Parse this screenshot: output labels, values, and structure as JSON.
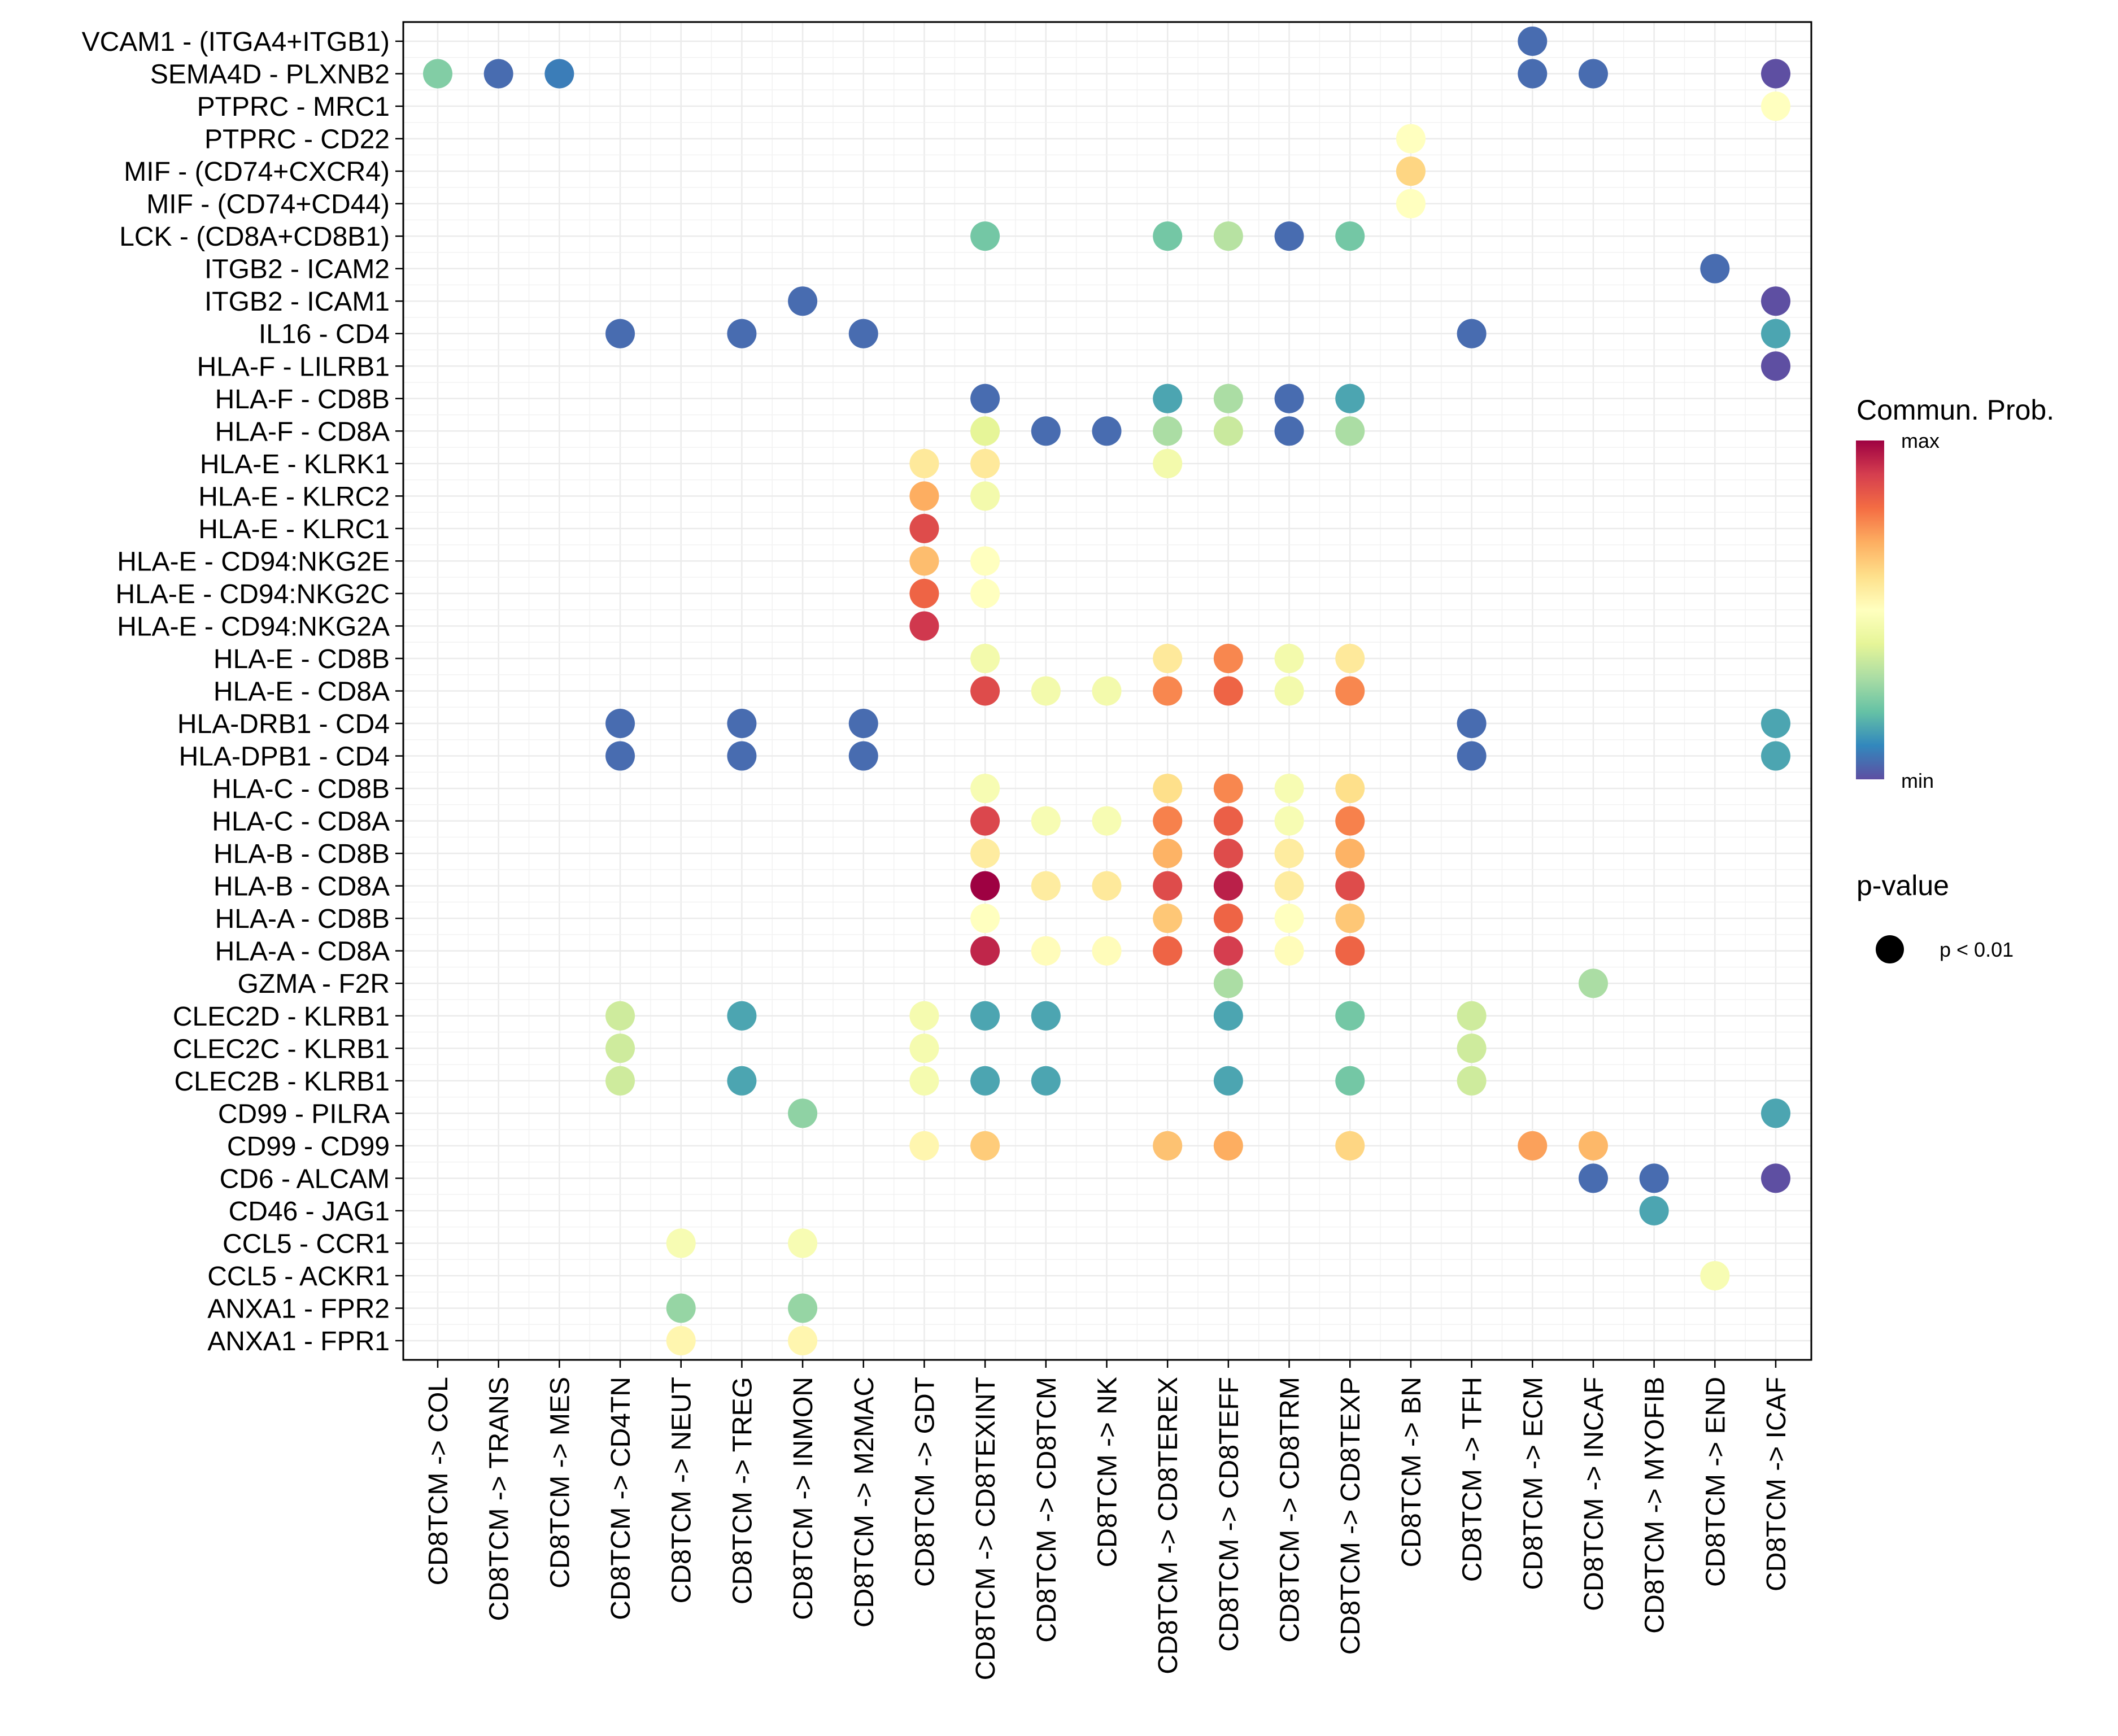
{
  "chart_data": {
    "type": "scatter",
    "subtype": "dot-plot",
    "title": "",
    "xlabel": "",
    "ylabel": "",
    "grid": true,
    "legend_position": "right",
    "x_categories": [
      "CD8TCM -> COL",
      "CD8TCM -> TRANS",
      "CD8TCM -> MES",
      "CD8TCM -> CD4TN",
      "CD8TCM -> NEUT",
      "CD8TCM -> TREG",
      "CD8TCM -> INMON",
      "CD8TCM -> M2MAC",
      "CD8TCM -> GDT",
      "CD8TCM -> CD8TEXINT",
      "CD8TCM -> CD8TCM",
      "CD8TCM -> NK",
      "CD8TCM -> CD8TEREX",
      "CD8TCM -> CD8TEFF",
      "CD8TCM -> CD8TRM",
      "CD8TCM -> CD8TEXP",
      "CD8TCM -> BN",
      "CD8TCM -> TFH",
      "CD8TCM -> ECM",
      "CD8TCM -> INCAF",
      "CD8TCM -> MYOFIB",
      "CD8TCM -> END",
      "CD8TCM -> ICAF"
    ],
    "y_categories": [
      "VCAM1 - (ITGA4+ITGB1)",
      "SEMA4D - PLXNB2",
      "PTPRC - MRC1",
      "PTPRC - CD22",
      "MIF - (CD74+CXCR4)",
      "MIF - (CD74+CD44)",
      "LCK - (CD8A+CD8B1)",
      "ITGB2 - ICAM2",
      "ITGB2 - ICAM1",
      "IL16 - CD4",
      "HLA-F - LILRB1",
      "HLA-F - CD8B",
      "HLA-F - CD8A",
      "HLA-E - KLRK1",
      "HLA-E - KLRC2",
      "HLA-E - KLRC1",
      "HLA-E - CD94:NKG2E",
      "HLA-E - CD94:NKG2C",
      "HLA-E - CD94:NKG2A",
      "HLA-E - CD8B",
      "HLA-E - CD8A",
      "HLA-DRB1 - CD4",
      "HLA-DPB1 - CD4",
      "HLA-C - CD8B",
      "HLA-C - CD8A",
      "HLA-B - CD8B",
      "HLA-B - CD8A",
      "HLA-A - CD8B",
      "HLA-A - CD8A",
      "GZMA - F2R",
      "CLEC2D - KLRB1",
      "CLEC2C - KLRB1",
      "CLEC2B - KLRB1",
      "CD99 - PILRA",
      "CD99 - CD99",
      "CD6 - ALCAM",
      "CD46 - JAG1",
      "CCL5 - CCR1",
      "CCL5 - ACKR1",
      "ANXA1 - FPR2",
      "ANXA1 - FPR1"
    ],
    "value_scale": "relative communication probability, 0 = min, 1 = max",
    "points": [
      {
        "y": "VCAM1 - (ITGA4+ITGB1)",
        "x": "CD8TCM -> ECM",
        "prob": 0.05
      },
      {
        "y": "SEMA4D - PLXNB2",
        "x": "CD8TCM -> COL",
        "prob": 0.24
      },
      {
        "y": "SEMA4D - PLXNB2",
        "x": "CD8TCM -> TRANS",
        "prob": 0.05
      },
      {
        "y": "SEMA4D - PLXNB2",
        "x": "CD8TCM -> MES",
        "prob": 0.08
      },
      {
        "y": "SEMA4D - PLXNB2",
        "x": "CD8TCM -> ECM",
        "prob": 0.05
      },
      {
        "y": "SEMA4D - PLXNB2",
        "x": "CD8TCM -> INCAF",
        "prob": 0.05
      },
      {
        "y": "SEMA4D - PLXNB2",
        "x": "CD8TCM -> ICAF",
        "prob": 0.0
      },
      {
        "y": "PTPRC - MRC1",
        "x": "CD8TCM -> ICAF",
        "prob": 0.5
      },
      {
        "y": "PTPRC - CD22",
        "x": "CD8TCM -> BN",
        "prob": 0.5
      },
      {
        "y": "MIF - (CD74+CXCR4)",
        "x": "CD8TCM -> BN",
        "prob": 0.62
      },
      {
        "y": "MIF - (CD74+CD44)",
        "x": "CD8TCM -> BN",
        "prob": 0.5
      },
      {
        "y": "LCK - (CD8A+CD8B1)",
        "x": "CD8TCM -> CD8TEXINT",
        "prob": 0.22
      },
      {
        "y": "LCK - (CD8A+CD8B1)",
        "x": "CD8TCM -> CD8TEREX",
        "prob": 0.22
      },
      {
        "y": "LCK - (CD8A+CD8B1)",
        "x": "CD8TCM -> CD8TEFF",
        "prob": 0.32
      },
      {
        "y": "LCK - (CD8A+CD8B1)",
        "x": "CD8TCM -> CD8TRM",
        "prob": 0.05
      },
      {
        "y": "LCK - (CD8A+CD8B1)",
        "x": "CD8TCM -> CD8TEXP",
        "prob": 0.22
      },
      {
        "y": "ITGB2 - ICAM2",
        "x": "CD8TCM -> END",
        "prob": 0.05
      },
      {
        "y": "ITGB2 - ICAM1",
        "x": "CD8TCM -> INMON",
        "prob": 0.05
      },
      {
        "y": "ITGB2 - ICAM1",
        "x": "CD8TCM -> ICAF",
        "prob": 0.0
      },
      {
        "y": "IL16 - CD4",
        "x": "CD8TCM -> CD4TN",
        "prob": 0.05
      },
      {
        "y": "IL16 - CD4",
        "x": "CD8TCM -> TREG",
        "prob": 0.05
      },
      {
        "y": "IL16 - CD4",
        "x": "CD8TCM -> M2MAC",
        "prob": 0.05
      },
      {
        "y": "IL16 - CD4",
        "x": "CD8TCM -> TFH",
        "prob": 0.05
      },
      {
        "y": "IL16 - CD4",
        "x": "CD8TCM -> ICAF",
        "prob": 0.15
      },
      {
        "y": "HLA-F - LILRB1",
        "x": "CD8TCM -> ICAF",
        "prob": 0.0
      },
      {
        "y": "HLA-F - CD8B",
        "x": "CD8TCM -> CD8TEXINT",
        "prob": 0.05
      },
      {
        "y": "HLA-F - CD8B",
        "x": "CD8TCM -> CD8TEREX",
        "prob": 0.15
      },
      {
        "y": "HLA-F - CD8B",
        "x": "CD8TCM -> CD8TEFF",
        "prob": 0.3
      },
      {
        "y": "HLA-F - CD8B",
        "x": "CD8TCM -> CD8TRM",
        "prob": 0.05
      },
      {
        "y": "HLA-F - CD8B",
        "x": "CD8TCM -> CD8TEXP",
        "prob": 0.15
      },
      {
        "y": "HLA-F - CD8A",
        "x": "CD8TCM -> CD8TEXINT",
        "prob": 0.4
      },
      {
        "y": "HLA-F - CD8A",
        "x": "CD8TCM -> CD8TCM",
        "prob": 0.05
      },
      {
        "y": "HLA-F - CD8A",
        "x": "CD8TCM -> NK",
        "prob": 0.05
      },
      {
        "y": "HLA-F - CD8A",
        "x": "CD8TCM -> CD8TEREX",
        "prob": 0.3
      },
      {
        "y": "HLA-F - CD8A",
        "x": "CD8TCM -> CD8TEFF",
        "prob": 0.35
      },
      {
        "y": "HLA-F - CD8A",
        "x": "CD8TCM -> CD8TRM",
        "prob": 0.05
      },
      {
        "y": "HLA-F - CD8A",
        "x": "CD8TCM -> CD8TEXP",
        "prob": 0.3
      },
      {
        "y": "HLA-E - KLRK1",
        "x": "CD8TCM -> GDT",
        "prob": 0.57
      },
      {
        "y": "HLA-E - KLRK1",
        "x": "CD8TCM -> CD8TEXINT",
        "prob": 0.57
      },
      {
        "y": "HLA-E - KLRK1",
        "x": "CD8TCM -> CD8TEREX",
        "prob": 0.45
      },
      {
        "y": "HLA-E - KLRC2",
        "x": "CD8TCM -> GDT",
        "prob": 0.7
      },
      {
        "y": "HLA-E - KLRC2",
        "x": "CD8TCM -> CD8TEXINT",
        "prob": 0.45
      },
      {
        "y": "HLA-E - KLRC1",
        "x": "CD8TCM -> GDT",
        "prob": 0.87
      },
      {
        "y": "HLA-E - CD94:NKG2E",
        "x": "CD8TCM -> GDT",
        "prob": 0.67
      },
      {
        "y": "HLA-E - CD94:NKG2E",
        "x": "CD8TCM -> CD8TEXINT",
        "prob": 0.5
      },
      {
        "y": "HLA-E - CD94:NKG2C",
        "x": "CD8TCM -> GDT",
        "prob": 0.82
      },
      {
        "y": "HLA-E - CD94:NKG2C",
        "x": "CD8TCM -> CD8TEXINT",
        "prob": 0.5
      },
      {
        "y": "HLA-E - CD94:NKG2A",
        "x": "CD8TCM -> GDT",
        "prob": 0.91
      },
      {
        "y": "HLA-E - CD8B",
        "x": "CD8TCM -> CD8TEXINT",
        "prob": 0.45
      },
      {
        "y": "HLA-E - CD8B",
        "x": "CD8TCM -> CD8TEREX",
        "prob": 0.57
      },
      {
        "y": "HLA-E - CD8B",
        "x": "CD8TCM -> CD8TEFF",
        "prob": 0.76
      },
      {
        "y": "HLA-E - CD8B",
        "x": "CD8TCM -> CD8TRM",
        "prob": 0.45
      },
      {
        "y": "HLA-E - CD8B",
        "x": "CD8TCM -> CD8TEXP",
        "prob": 0.57
      },
      {
        "y": "HLA-E - CD8A",
        "x": "CD8TCM -> CD8TEXINT",
        "prob": 0.87
      },
      {
        "y": "HLA-E - CD8A",
        "x": "CD8TCM -> CD8TCM",
        "prob": 0.45
      },
      {
        "y": "HLA-E - CD8A",
        "x": "CD8TCM -> NK",
        "prob": 0.45
      },
      {
        "y": "HLA-E - CD8A",
        "x": "CD8TCM -> CD8TEREX",
        "prob": 0.76
      },
      {
        "y": "HLA-E - CD8A",
        "x": "CD8TCM -> CD8TEFF",
        "prob": 0.82
      },
      {
        "y": "HLA-E - CD8A",
        "x": "CD8TCM -> CD8TRM",
        "prob": 0.45
      },
      {
        "y": "HLA-E - CD8A",
        "x": "CD8TCM -> CD8TEXP",
        "prob": 0.76
      },
      {
        "y": "HLA-DRB1 - CD4",
        "x": "CD8TCM -> CD4TN",
        "prob": 0.05
      },
      {
        "y": "HLA-DRB1 - CD4",
        "x": "CD8TCM -> TREG",
        "prob": 0.05
      },
      {
        "y": "HLA-DRB1 - CD4",
        "x": "CD8TCM -> M2MAC",
        "prob": 0.05
      },
      {
        "y": "HLA-DRB1 - CD4",
        "x": "CD8TCM -> TFH",
        "prob": 0.05
      },
      {
        "y": "HLA-DRB1 - CD4",
        "x": "CD8TCM -> ICAF",
        "prob": 0.15
      },
      {
        "y": "HLA-DPB1 - CD4",
        "x": "CD8TCM -> CD4TN",
        "prob": 0.05
      },
      {
        "y": "HLA-DPB1 - CD4",
        "x": "CD8TCM -> TREG",
        "prob": 0.05
      },
      {
        "y": "HLA-DPB1 - CD4",
        "x": "CD8TCM -> M2MAC",
        "prob": 0.05
      },
      {
        "y": "HLA-DPB1 - CD4",
        "x": "CD8TCM -> TFH",
        "prob": 0.05
      },
      {
        "y": "HLA-DPB1 - CD4",
        "x": "CD8TCM -> ICAF",
        "prob": 0.15
      },
      {
        "y": "HLA-C - CD8B",
        "x": "CD8TCM -> CD8TEXINT",
        "prob": 0.47
      },
      {
        "y": "HLA-C - CD8B",
        "x": "CD8TCM -> CD8TEREX",
        "prob": 0.6
      },
      {
        "y": "HLA-C - CD8B",
        "x": "CD8TCM -> CD8TEFF",
        "prob": 0.76
      },
      {
        "y": "HLA-C - CD8B",
        "x": "CD8TCM -> CD8TRM",
        "prob": 0.47
      },
      {
        "y": "HLA-C - CD8B",
        "x": "CD8TCM -> CD8TEXP",
        "prob": 0.6
      },
      {
        "y": "HLA-C - CD8A",
        "x": "CD8TCM -> CD8TEXINT",
        "prob": 0.88
      },
      {
        "y": "HLA-C - CD8A",
        "x": "CD8TCM -> CD8TCM",
        "prob": 0.47
      },
      {
        "y": "HLA-C - CD8A",
        "x": "CD8TCM -> NK",
        "prob": 0.47
      },
      {
        "y": "HLA-C - CD8A",
        "x": "CD8TCM -> CD8TEREX",
        "prob": 0.77
      },
      {
        "y": "HLA-C - CD8A",
        "x": "CD8TCM -> CD8TEFF",
        "prob": 0.83
      },
      {
        "y": "HLA-C - CD8A",
        "x": "CD8TCM -> CD8TRM",
        "prob": 0.47
      },
      {
        "y": "HLA-C - CD8A",
        "x": "CD8TCM -> CD8TEXP",
        "prob": 0.77
      },
      {
        "y": "HLA-B - CD8B",
        "x": "CD8TCM -> CD8TEXINT",
        "prob": 0.56
      },
      {
        "y": "HLA-B - CD8B",
        "x": "CD8TCM -> CD8TEREX",
        "prob": 0.69
      },
      {
        "y": "HLA-B - CD8B",
        "x": "CD8TCM -> CD8TEFF",
        "prob": 0.87
      },
      {
        "y": "HLA-B - CD8B",
        "x": "CD8TCM -> CD8TRM",
        "prob": 0.56
      },
      {
        "y": "HLA-B - CD8B",
        "x": "CD8TCM -> CD8TEXP",
        "prob": 0.69
      },
      {
        "y": "HLA-B - CD8A",
        "x": "CD8TCM -> CD8TEXINT",
        "prob": 1.0
      },
      {
        "y": "HLA-B - CD8A",
        "x": "CD8TCM -> CD8TCM",
        "prob": 0.56
      },
      {
        "y": "HLA-B - CD8A",
        "x": "CD8TCM -> NK",
        "prob": 0.57
      },
      {
        "y": "HLA-B - CD8A",
        "x": "CD8TCM -> CD8TEREX",
        "prob": 0.87
      },
      {
        "y": "HLA-B - CD8A",
        "x": "CD8TCM -> CD8TEFF",
        "prob": 0.95
      },
      {
        "y": "HLA-B - CD8A",
        "x": "CD8TCM -> CD8TRM",
        "prob": 0.56
      },
      {
        "y": "HLA-B - CD8A",
        "x": "CD8TCM -> CD8TEXP",
        "prob": 0.87
      },
      {
        "y": "HLA-A - CD8B",
        "x": "CD8TCM -> CD8TEXINT",
        "prob": 0.5
      },
      {
        "y": "HLA-A - CD8B",
        "x": "CD8TCM -> CD8TEREX",
        "prob": 0.65
      },
      {
        "y": "HLA-A - CD8B",
        "x": "CD8TCM -> CD8TEFF",
        "prob": 0.82
      },
      {
        "y": "HLA-A - CD8B",
        "x": "CD8TCM -> CD8TRM",
        "prob": 0.5
      },
      {
        "y": "HLA-A - CD8B",
        "x": "CD8TCM -> CD8TEXP",
        "prob": 0.65
      },
      {
        "y": "HLA-A - CD8A",
        "x": "CD8TCM -> CD8TEXINT",
        "prob": 0.94
      },
      {
        "y": "HLA-A - CD8A",
        "x": "CD8TCM -> CD8TCM",
        "prob": 0.51
      },
      {
        "y": "HLA-A - CD8A",
        "x": "CD8TCM -> NK",
        "prob": 0.51
      },
      {
        "y": "HLA-A - CD8A",
        "x": "CD8TCM -> CD8TEREX",
        "prob": 0.82
      },
      {
        "y": "HLA-A - CD8A",
        "x": "CD8TCM -> CD8TEFF",
        "prob": 0.9
      },
      {
        "y": "HLA-A - CD8A",
        "x": "CD8TCM -> CD8TRM",
        "prob": 0.51
      },
      {
        "y": "HLA-A - CD8A",
        "x": "CD8TCM -> CD8TEXP",
        "prob": 0.82
      },
      {
        "y": "GZMA - F2R",
        "x": "CD8TCM -> CD8TEFF",
        "prob": 0.3
      },
      {
        "y": "GZMA - F2R",
        "x": "CD8TCM -> INCAF",
        "prob": 0.3
      },
      {
        "y": "CLEC2D - KLRB1",
        "x": "CD8TCM -> CD4TN",
        "prob": 0.36
      },
      {
        "y": "CLEC2D - KLRB1",
        "x": "CD8TCM -> TREG",
        "prob": 0.15
      },
      {
        "y": "CLEC2D - KLRB1",
        "x": "CD8TCM -> GDT",
        "prob": 0.46
      },
      {
        "y": "CLEC2D - KLRB1",
        "x": "CD8TCM -> CD8TEXINT",
        "prob": 0.15
      },
      {
        "y": "CLEC2D - KLRB1",
        "x": "CD8TCM -> CD8TCM",
        "prob": 0.15
      },
      {
        "y": "CLEC2D - KLRB1",
        "x": "CD8TCM -> CD8TEFF",
        "prob": 0.15
      },
      {
        "y": "CLEC2D - KLRB1",
        "x": "CD8TCM -> CD8TEXP",
        "prob": 0.22
      },
      {
        "y": "CLEC2D - KLRB1",
        "x": "CD8TCM -> TFH",
        "prob": 0.36
      },
      {
        "y": "CLEC2C - KLRB1",
        "x": "CD8TCM -> CD4TN",
        "prob": 0.36
      },
      {
        "y": "CLEC2C - KLRB1",
        "x": "CD8TCM -> GDT",
        "prob": 0.46
      },
      {
        "y": "CLEC2C - KLRB1",
        "x": "CD8TCM -> TFH",
        "prob": 0.36
      },
      {
        "y": "CLEC2B - KLRB1",
        "x": "CD8TCM -> CD4TN",
        "prob": 0.36
      },
      {
        "y": "CLEC2B - KLRB1",
        "x": "CD8TCM -> TREG",
        "prob": 0.15
      },
      {
        "y": "CLEC2B - KLRB1",
        "x": "CD8TCM -> GDT",
        "prob": 0.46
      },
      {
        "y": "CLEC2B - KLRB1",
        "x": "CD8TCM -> CD8TEXINT",
        "prob": 0.15
      },
      {
        "y": "CLEC2B - KLRB1",
        "x": "CD8TCM -> CD8TCM",
        "prob": 0.15
      },
      {
        "y": "CLEC2B - KLRB1",
        "x": "CD8TCM -> CD8TEFF",
        "prob": 0.15
      },
      {
        "y": "CLEC2B - KLRB1",
        "x": "CD8TCM -> CD8TEXP",
        "prob": 0.22
      },
      {
        "y": "CLEC2B - KLRB1",
        "x": "CD8TCM -> TFH",
        "prob": 0.36
      },
      {
        "y": "CD99 - PILRA",
        "x": "CD8TCM -> INMON",
        "prob": 0.26
      },
      {
        "y": "CD99 - PILRA",
        "x": "CD8TCM -> ICAF",
        "prob": 0.15
      },
      {
        "y": "CD99 - CD99",
        "x": "CD8TCM -> GDT",
        "prob": 0.53
      },
      {
        "y": "CD99 - CD99",
        "x": "CD8TCM -> CD8TEXINT",
        "prob": 0.64
      },
      {
        "y": "CD99 - CD99",
        "x": "CD8TCM -> CD8TEREX",
        "prob": 0.66
      },
      {
        "y": "CD99 - CD99",
        "x": "CD8TCM -> CD8TEFF",
        "prob": 0.7
      },
      {
        "y": "CD99 - CD99",
        "x": "CD8TCM -> CD8TEXP",
        "prob": 0.62
      },
      {
        "y": "CD99 - CD99",
        "x": "CD8TCM -> ECM",
        "prob": 0.72
      },
      {
        "y": "CD99 - CD99",
        "x": "CD8TCM -> INCAF",
        "prob": 0.68
      },
      {
        "y": "CD6 - ALCAM",
        "x": "CD8TCM -> INCAF",
        "prob": 0.05
      },
      {
        "y": "CD6 - ALCAM",
        "x": "CD8TCM -> MYOFIB",
        "prob": 0.05
      },
      {
        "y": "CD6 - ALCAM",
        "x": "CD8TCM -> ICAF",
        "prob": 0.0
      },
      {
        "y": "CD46 - JAG1",
        "x": "CD8TCM -> MYOFIB",
        "prob": 0.15
      },
      {
        "y": "CCL5 - CCR1",
        "x": "CD8TCM -> NEUT",
        "prob": 0.47
      },
      {
        "y": "CCL5 - CCR1",
        "x": "CD8TCM -> INMON",
        "prob": 0.47
      },
      {
        "y": "CCL5 - ACKR1",
        "x": "CD8TCM -> END",
        "prob": 0.47
      },
      {
        "y": "ANXA1 - FPR2",
        "x": "CD8TCM -> NEUT",
        "prob": 0.27
      },
      {
        "y": "ANXA1 - FPR2",
        "x": "CD8TCM -> INMON",
        "prob": 0.27
      },
      {
        "y": "ANXA1 - FPR1",
        "x": "CD8TCM -> NEUT",
        "prob": 0.53
      },
      {
        "y": "ANXA1 - FPR1",
        "x": "CD8TCM -> INMON",
        "prob": 0.53
      }
    ],
    "colorbar": {
      "title": "Commun. Prob.",
      "max_label": "max",
      "min_label": "min",
      "palette": [
        "#5E4FA2",
        "#3288BD",
        "#66C2A5",
        "#ABDDA4",
        "#E6F598",
        "#FFFFBF",
        "#FEE08B",
        "#FDAE61",
        "#F46D43",
        "#D53E4F",
        "#9E0142"
      ]
    },
    "size_legend": {
      "title": "p-value",
      "entries": [
        {
          "label": "p < 0.01"
        }
      ]
    }
  }
}
